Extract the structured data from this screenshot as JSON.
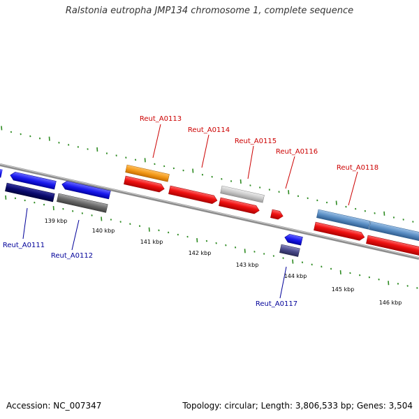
{
  "title": "Ralstonia eutropha JMP134 chromosome 1, complete sequence",
  "footer": {
    "accession": "Accession: NC_007347",
    "summary": "Topology: circular; Length: 3,806,533 bp; Genes: 3,504"
  },
  "colors": {
    "backbone": "#8c8c8c",
    "tick": "#2e8b22",
    "label_top": "#cc0000",
    "label_bottom": "#000099",
    "cds_red": "#ee1111",
    "orange": "#f39a1a",
    "blue": "#1a1aee",
    "navy": "#0a0a6e",
    "gray": "#6a6a6a",
    "lightgray": "#c8c8c8",
    "steelblue": "#5a8ec4",
    "slate": "#4a4a8a"
  },
  "ruler": [
    {
      "label": "139 kbp"
    },
    {
      "label": "140 kbp"
    },
    {
      "label": "141 kbp"
    },
    {
      "label": "142 kbp"
    },
    {
      "label": "143 kbp"
    },
    {
      "label": "144 kbp"
    },
    {
      "label": "145 kbp"
    },
    {
      "label": "146 kbp"
    }
  ],
  "top_labels": [
    "Reut_A0113",
    "Reut_A0114",
    "Reut_A0115",
    "Reut_A0116",
    "Reut_A0118"
  ],
  "bottom_labels": [
    "Reut_A0111",
    "Reut_A0112",
    "Reut_A0117"
  ]
}
